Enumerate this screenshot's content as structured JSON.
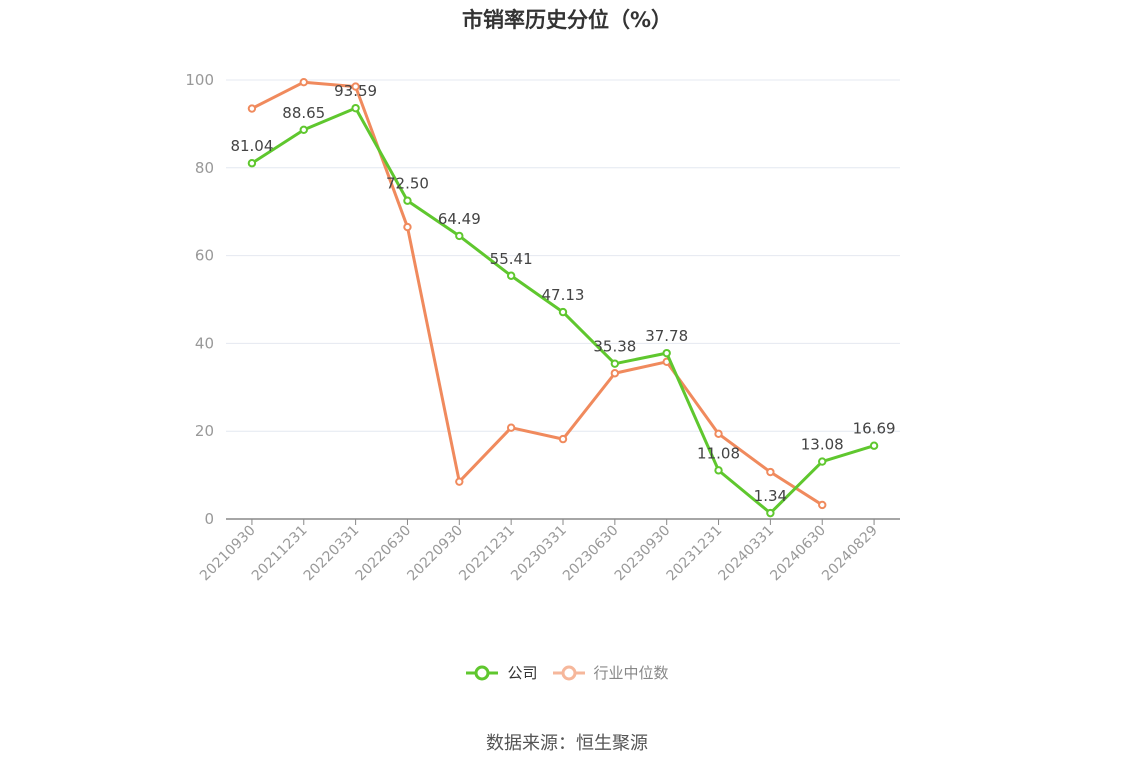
{
  "title": "市销率历史分位（%）",
  "source": "数据来源：恒生聚源",
  "colors": {
    "company": "#5fc72e",
    "industry": "#f08a5d",
    "grid": "#e4e8f0",
    "axis": "#888888",
    "tick_text": "#999999",
    "label_text": "#444444"
  },
  "chart_data": {
    "type": "line",
    "x": [
      "20210930",
      "20211231",
      "20220331",
      "20220630",
      "20220930",
      "20221231",
      "20230331",
      "20230630",
      "20230930",
      "20231231",
      "20240331",
      "20240630",
      "20240829"
    ],
    "ylim": [
      0,
      100
    ],
    "yticks": [
      0,
      20,
      40,
      60,
      80,
      100
    ],
    "grid": true,
    "legend_position": "bottom",
    "series": [
      {
        "name": "公司",
        "color": "#5fc72e",
        "values": [
          81.04,
          88.65,
          93.59,
          72.5,
          64.49,
          55.41,
          47.13,
          35.38,
          37.78,
          11.08,
          1.34,
          13.08,
          16.69
        ],
        "labels": [
          "81.04",
          "88.65",
          "93.59",
          "72.50",
          "64.49",
          "55.41",
          "47.13",
          "35.38",
          "37.78",
          "11.08",
          "1.34",
          "13.08",
          "16.69"
        ]
      },
      {
        "name": "行业中位数",
        "color": "#f08a5d",
        "values": [
          93.5,
          99.5,
          98.5,
          66.5,
          8.5,
          20.8,
          18.2,
          33.2,
          35.8,
          19.4,
          10.7,
          3.2,
          null
        ]
      }
    ]
  }
}
